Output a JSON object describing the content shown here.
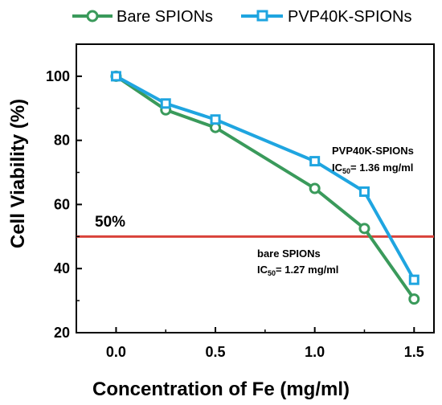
{
  "chart_data": {
    "type": "line",
    "xlabel": "Concentration of Fe (mg/ml)",
    "ylabel": "Cell Viability (%)",
    "xlim": [
      -0.2,
      1.6
    ],
    "ylim": [
      20,
      110
    ],
    "xticks": [
      "0.0",
      "0.5",
      "1.0",
      "1.5"
    ],
    "xtick_values": [
      0.0,
      0.5,
      1.0,
      1.5
    ],
    "yticks": [
      "20",
      "40",
      "60",
      "80",
      "100"
    ],
    "ytick_values": [
      20,
      40,
      60,
      80,
      100
    ],
    "legend_position": "top",
    "grid": false,
    "series": [
      {
        "name": "Bare SPIONs",
        "color": "#3a9a5b",
        "marker": "circle",
        "x": [
          0.0,
          0.25,
          0.5,
          1.0,
          1.25,
          1.5
        ],
        "y": [
          100,
          89.5,
          84,
          65,
          52.5,
          30.5
        ]
      },
      {
        "name": "PVP40K-SPIONs",
        "color": "#1fa5e0",
        "marker": "square",
        "x": [
          0.0,
          0.25,
          0.5,
          1.0,
          1.25,
          1.5
        ],
        "y": [
          100,
          91.5,
          86.5,
          73.5,
          64,
          36.5
        ]
      }
    ],
    "reference_line": {
      "label": "50%",
      "y": 50,
      "color": "#d9423a"
    },
    "annotations": [
      {
        "line1": "PVP40K-SPIONs",
        "ic_main": "IC",
        "ic_sub": "50",
        "ic_value": "= 1.36 mg/ml"
      },
      {
        "line1": "bare SPIONs",
        "ic_main": "IC",
        "ic_sub": "50",
        "ic_value": "= 1.27 mg/ml"
      }
    ]
  }
}
